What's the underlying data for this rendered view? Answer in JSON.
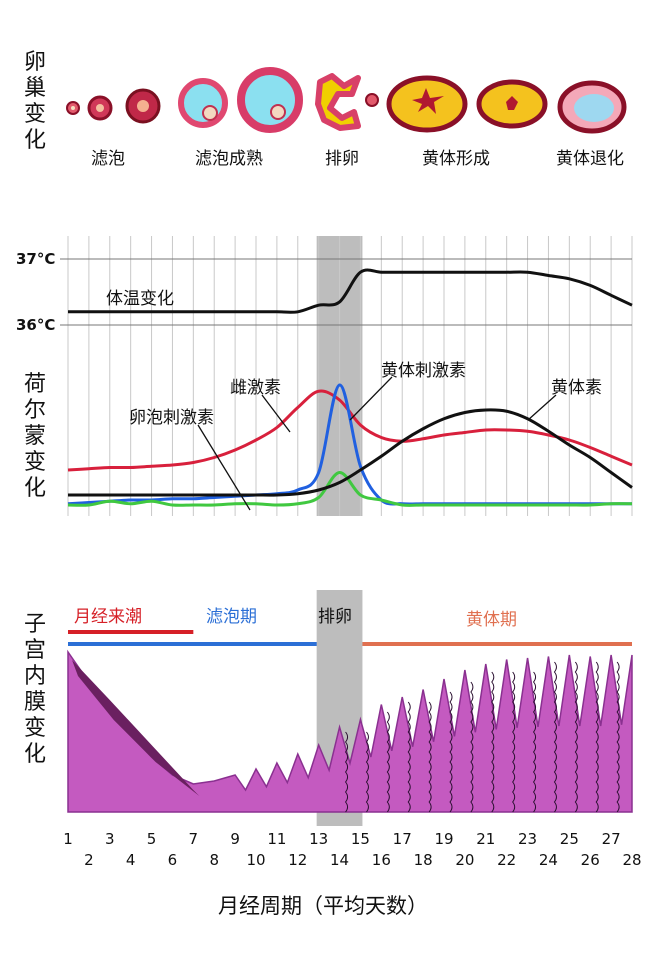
{
  "sections": {
    "ovary_label": "卵巢变化",
    "hormone_label": "荷尔蒙变化",
    "endometrium_label": "子宫内膜变化"
  },
  "ovary_stages": {
    "follicle": "滤泡",
    "mature": "滤泡成熟",
    "ovulation": "排卵",
    "corpus_luteum_forming": "黄体形成",
    "corpus_luteum_regress": "黄体退化"
  },
  "temperature": {
    "high_label": "37°C",
    "low_label": "36°C",
    "curve_label": "体温变化"
  },
  "hormones": {
    "estrogen": "雌激素",
    "lh": "黄体刺激素",
    "fsh": "卵泡刺激素",
    "progesterone": "黄体素"
  },
  "phases": {
    "menstruation": "月经来潮",
    "follicular": "滤泡期",
    "ovulation": "排卵",
    "luteal": "黄体期"
  },
  "colors": {
    "menstruation": "#d62027",
    "follicular": "#2b6fd6",
    "luteal": "#e07050",
    "estrogen": "#d8203c",
    "lh": "#2060e0",
    "fsh": "#40c840",
    "progesterone": "#111111",
    "endometrium": "#c45ac0",
    "ovulation_band": "#bdbdbd"
  },
  "chart_data": {
    "type": "line",
    "x": [
      1,
      2,
      3,
      4,
      5,
      6,
      7,
      8,
      9,
      10,
      11,
      12,
      13,
      14,
      15,
      16,
      17,
      18,
      19,
      20,
      21,
      22,
      23,
      24,
      25,
      26,
      27,
      28
    ],
    "ylim_temperature": [
      36,
      37
    ],
    "series": [
      {
        "name": "体温变化",
        "values": [
          36.2,
          36.2,
          36.2,
          36.2,
          36.2,
          36.2,
          36.2,
          36.2,
          36.2,
          36.2,
          36.2,
          36.2,
          36.3,
          36.35,
          36.8,
          36.8,
          36.8,
          36.8,
          36.8,
          36.8,
          36.8,
          36.8,
          36.8,
          36.75,
          36.7,
          36.6,
          36.45,
          36.3
        ]
      },
      {
        "name": "雌激素",
        "values": [
          0.32,
          0.33,
          0.34,
          0.34,
          0.35,
          0.36,
          0.38,
          0.42,
          0.48,
          0.56,
          0.66,
          0.82,
          0.95,
          0.88,
          0.68,
          0.58,
          0.55,
          0.57,
          0.6,
          0.62,
          0.64,
          0.64,
          0.63,
          0.6,
          0.56,
          0.5,
          0.43,
          0.36
        ]
      },
      {
        "name": "黄体刺激素",
        "values": [
          0.05,
          0.06,
          0.07,
          0.08,
          0.08,
          0.09,
          0.09,
          0.1,
          0.11,
          0.12,
          0.13,
          0.16,
          0.3,
          1.0,
          0.35,
          0.08,
          0.05,
          0.05,
          0.05,
          0.05,
          0.05,
          0.05,
          0.05,
          0.05,
          0.05,
          0.05,
          0.05,
          0.05
        ]
      },
      {
        "name": "卵泡刺激素",
        "values": [
          0.04,
          0.04,
          0.07,
          0.05,
          0.07,
          0.04,
          0.04,
          0.04,
          0.05,
          0.05,
          0.04,
          0.05,
          0.1,
          0.3,
          0.12,
          0.08,
          0.04,
          0.04,
          0.04,
          0.04,
          0.04,
          0.04,
          0.04,
          0.04,
          0.04,
          0.04,
          0.05,
          0.05
        ]
      },
      {
        "name": "黄体素",
        "values": [
          0.12,
          0.12,
          0.12,
          0.12,
          0.12,
          0.12,
          0.12,
          0.12,
          0.12,
          0.12,
          0.12,
          0.13,
          0.16,
          0.22,
          0.32,
          0.43,
          0.55,
          0.65,
          0.73,
          0.78,
          0.8,
          0.79,
          0.73,
          0.63,
          0.52,
          0.42,
          0.3,
          0.18
        ]
      }
    ],
    "xlabel": "月经周期（平均天数）",
    "xticks": [
      "1",
      "2",
      "3",
      "4",
      "5",
      "6",
      "7",
      "8",
      "9",
      "10",
      "11",
      "12",
      "13",
      "14",
      "15",
      "16",
      "17",
      "18",
      "19",
      "20",
      "21",
      "22",
      "23",
      "24",
      "25",
      "26",
      "27",
      "28"
    ],
    "phases": [
      {
        "name": "月经来潮",
        "start": 1,
        "end": 7
      },
      {
        "name": "滤泡期",
        "start": 1,
        "end": 13
      },
      {
        "name": "排卵",
        "start": 13,
        "end": 15
      },
      {
        "name": "黄体期",
        "start": 15,
        "end": 28
      }
    ],
    "endometrium_thickness": [
      1.0,
      0.8,
      0.62,
      0.45,
      0.3,
      0.18,
      0.12,
      0.14,
      0.18,
      0.22,
      0.26,
      0.32,
      0.38,
      0.5,
      0.55,
      0.65,
      0.7,
      0.75,
      0.82,
      0.88,
      0.92,
      0.95,
      0.96,
      0.97,
      0.98,
      0.97,
      0.98,
      1.0
    ],
    "grid": true
  }
}
